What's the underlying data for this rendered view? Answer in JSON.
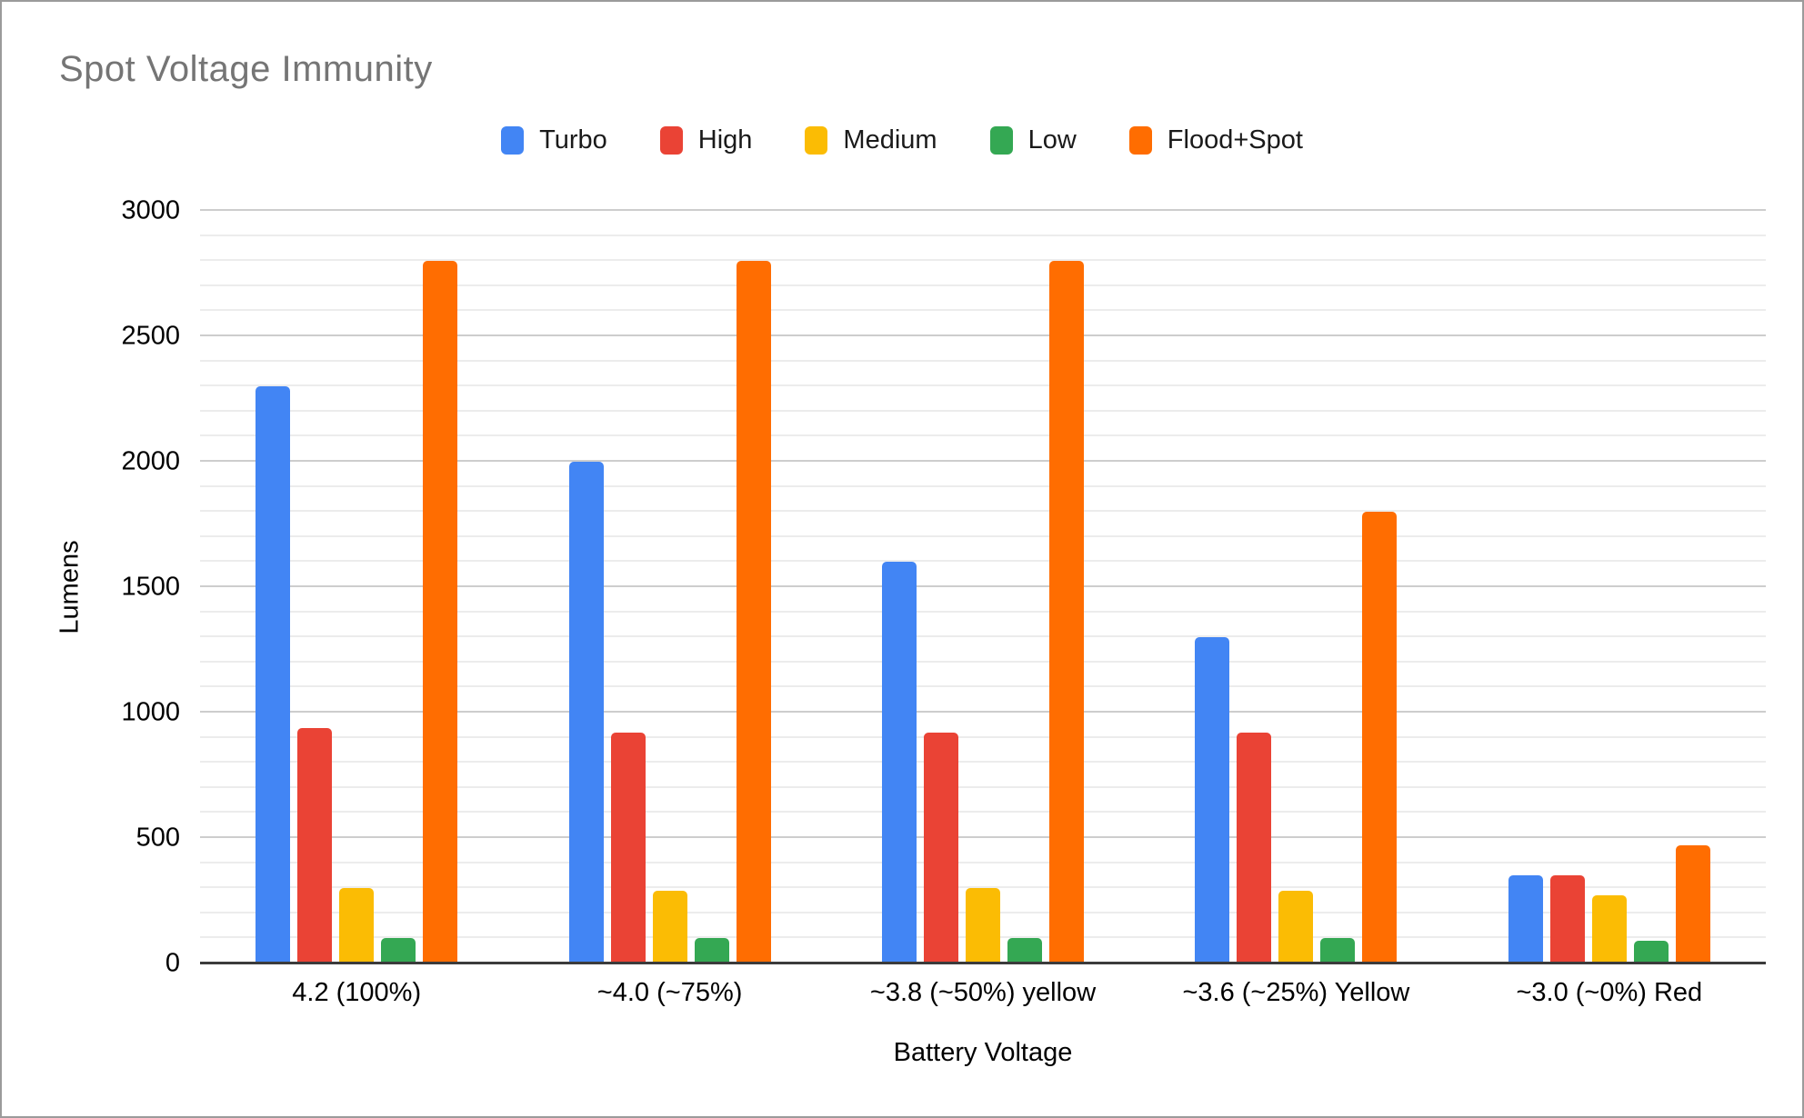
{
  "chart": {
    "background_color": "#ffffff",
    "frame_border_color": "#9b9b9b",
    "title_color": "#757575",
    "axis_text_color": "#000000",
    "axis_line_color": "#3b3b3b",
    "major_gridline_color": "#cdcdcd",
    "minor_gridline_color": "#ececec"
  },
  "chart_data": {
    "type": "bar",
    "title": "Spot Voltage Immunity",
    "xlabel": "Battery Voltage",
    "ylabel": "Lumens",
    "ylim": [
      0,
      3000
    ],
    "y_major_ticks": [
      0,
      500,
      1000,
      1500,
      2000,
      2500,
      3000
    ],
    "y_minor_step": 100,
    "grid": true,
    "legend_position": "top",
    "categories": [
      "4.2 (100%)",
      "~4.0 (~75%)",
      "~3.8 (~50%) yellow",
      "~3.6 (~25%) Yellow",
      "~3.0 (~0%) Red"
    ],
    "series": [
      {
        "name": "Turbo",
        "color": "#4285F4",
        "values": [
          2300,
          2000,
          1600,
          1300,
          350
        ]
      },
      {
        "name": "High",
        "color": "#EA4335",
        "values": [
          940,
          920,
          920,
          920,
          350
        ]
      },
      {
        "name": "Medium",
        "color": "#FBBC04",
        "values": [
          300,
          290,
          300,
          290,
          270
        ]
      },
      {
        "name": "Low",
        "color": "#34A853",
        "values": [
          100,
          100,
          100,
          100,
          90
        ]
      },
      {
        "name": "Flood+Spot",
        "color": "#FF6D01",
        "values": [
          2800,
          2800,
          2800,
          1800,
          470
        ]
      }
    ]
  }
}
